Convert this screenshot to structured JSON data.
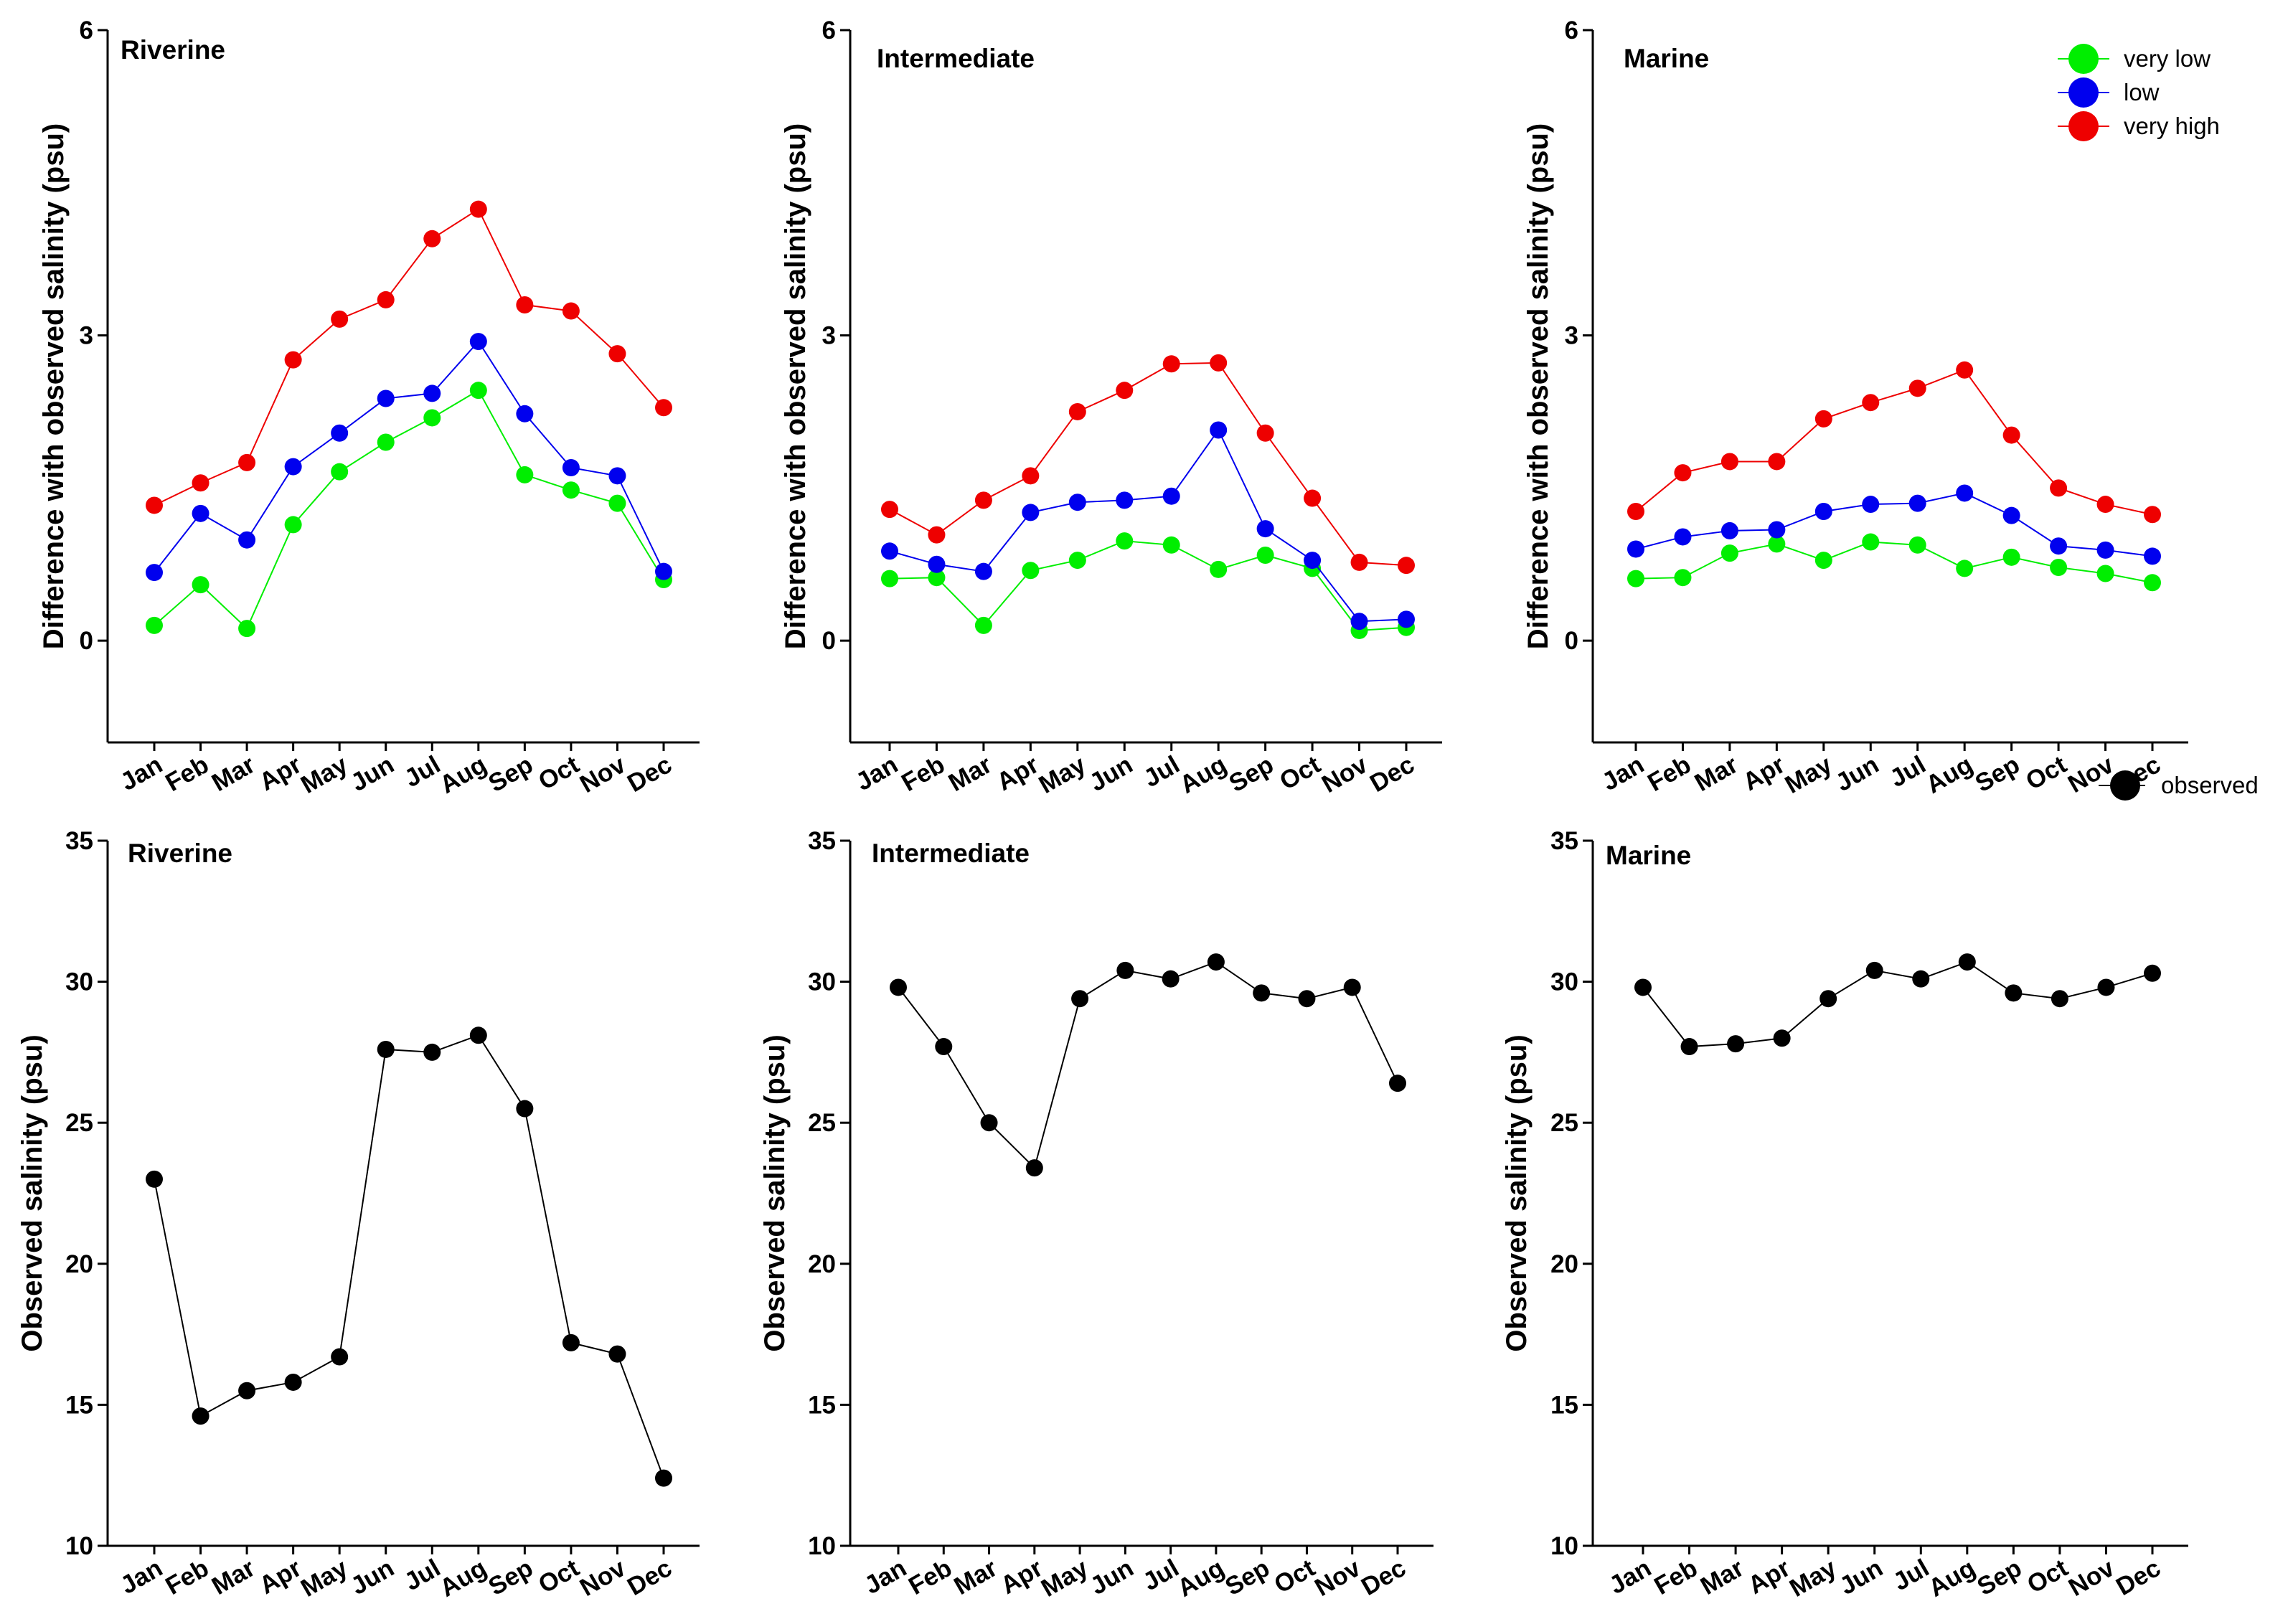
{
  "chart_data": [
    {
      "type": "line",
      "title": "Riverine",
      "ylabel": "Difference with observed salinity (psu)",
      "ylim": [
        -1,
        6
      ],
      "yticks": [
        0,
        3,
        6
      ],
      "categories": [
        "Jan",
        "Feb",
        "Mar",
        "Apr",
        "May",
        "Jun",
        "Jul",
        "Aug",
        "Sep",
        "Oct",
        "Nov",
        "Dec"
      ],
      "series": [
        {
          "name": "very low",
          "color": "#00ee00",
          "values": [
            0.15,
            0.55,
            0.12,
            1.14,
            1.66,
            1.95,
            2.19,
            2.46,
            1.63,
            1.48,
            1.35,
            0.6
          ]
        },
        {
          "name": "low",
          "color": "#0000ee",
          "values": [
            0.67,
            1.25,
            0.99,
            1.71,
            2.04,
            2.38,
            2.43,
            2.94,
            2.23,
            1.7,
            1.62,
            0.68
          ]
        },
        {
          "name": "very high",
          "color": "#ee0000",
          "values": [
            1.33,
            1.55,
            1.75,
            2.76,
            3.16,
            3.35,
            3.95,
            4.24,
            3.3,
            3.24,
            2.82,
            2.29
          ]
        }
      ]
    },
    {
      "type": "line",
      "title": "Intermediate",
      "ylabel": "Difference with observed salinity (psu)",
      "ylim": [
        -1,
        6
      ],
      "yticks": [
        0,
        3,
        6
      ],
      "categories": [
        "Jan",
        "Feb",
        "Mar",
        "Apr",
        "May",
        "Jun",
        "Jul",
        "Aug",
        "Sep",
        "Oct",
        "Nov",
        "Dec"
      ],
      "series": [
        {
          "name": "very low",
          "color": "#00ee00",
          "values": [
            0.61,
            0.62,
            0.15,
            0.69,
            0.79,
            0.98,
            0.94,
            0.7,
            0.84,
            0.71,
            0.1,
            0.13
          ]
        },
        {
          "name": "low",
          "color": "#0000ee",
          "values": [
            0.88,
            0.75,
            0.68,
            1.26,
            1.36,
            1.38,
            1.42,
            2.07,
            1.1,
            0.79,
            0.19,
            0.21
          ]
        },
        {
          "name": "very high",
          "color": "#ee0000",
          "values": [
            1.29,
            1.04,
            1.38,
            1.62,
            2.25,
            2.46,
            2.72,
            2.73,
            2.04,
            1.4,
            0.77,
            0.74
          ]
        }
      ]
    },
    {
      "type": "line",
      "title": "Marine",
      "ylabel": "Difference with observed salinity (psu)",
      "ylim": [
        -1,
        6
      ],
      "yticks": [
        0,
        3,
        6
      ],
      "categories": [
        "Jan",
        "Feb",
        "Mar",
        "Apr",
        "May",
        "Jun",
        "Jul",
        "Aug",
        "Sep",
        "Oct",
        "Nov",
        "Dec"
      ],
      "series": [
        {
          "name": "very low",
          "color": "#00ee00",
          "values": [
            0.61,
            0.62,
            0.86,
            0.95,
            0.79,
            0.97,
            0.94,
            0.71,
            0.82,
            0.72,
            0.66,
            0.57
          ]
        },
        {
          "name": "low",
          "color": "#0000ee",
          "values": [
            0.9,
            1.02,
            1.08,
            1.09,
            1.27,
            1.34,
            1.35,
            1.45,
            1.23,
            0.93,
            0.89,
            0.83
          ]
        },
        {
          "name": "very high",
          "color": "#ee0000",
          "values": [
            1.27,
            1.65,
            1.76,
            1.76,
            2.18,
            2.34,
            2.48,
            2.66,
            2.02,
            1.5,
            1.34,
            1.24
          ]
        }
      ],
      "legend": "top-right"
    },
    {
      "type": "line",
      "title": "Riverine",
      "ylabel": "Observed salinity (psu)",
      "ylim": [
        10,
        35
      ],
      "yticks": [
        10,
        15,
        20,
        25,
        30,
        35
      ],
      "categories": [
        "Jan",
        "Feb",
        "Mar",
        "Apr",
        "May",
        "Jun",
        "Jul",
        "Aug",
        "Sep",
        "Oct",
        "Nov",
        "Dec"
      ],
      "series": [
        {
          "name": "observed",
          "color": "#000000",
          "values": [
            23.0,
            14.6,
            15.5,
            15.8,
            16.7,
            27.6,
            27.5,
            28.1,
            25.5,
            17.2,
            16.8,
            12.4
          ]
        }
      ]
    },
    {
      "type": "line",
      "title": "Intermediate",
      "ylabel": "Observed salinity (psu)",
      "ylim": [
        10,
        35
      ],
      "yticks": [
        10,
        15,
        20,
        25,
        30,
        35
      ],
      "categories": [
        "Jan",
        "Feb",
        "Mar",
        "Apr",
        "May",
        "Jun",
        "Jul",
        "Aug",
        "Sep",
        "Oct",
        "Nov",
        "Dec"
      ],
      "series": [
        {
          "name": "observed",
          "color": "#000000",
          "values": [
            29.8,
            27.7,
            25.0,
            23.4,
            29.4,
            30.4,
            30.1,
            30.7,
            29.6,
            29.4,
            29.8,
            26.4
          ]
        }
      ]
    },
    {
      "type": "line",
      "title": "Marine",
      "ylabel": "Observed salinity (psu)",
      "ylim": [
        10,
        35
      ],
      "yticks": [
        10,
        15,
        20,
        25,
        30,
        35
      ],
      "categories": [
        "Jan",
        "Feb",
        "Mar",
        "Apr",
        "May",
        "Jun",
        "Jul",
        "Aug",
        "Sep",
        "Oct",
        "Nov",
        "Dec"
      ],
      "series": [
        {
          "name": "observed",
          "color": "#000000",
          "values": [
            29.8,
            27.7,
            27.8,
            28.0,
            29.4,
            30.4,
            30.1,
            30.7,
            29.6,
            29.4,
            29.8,
            30.3
          ]
        }
      ],
      "legend": "top-right"
    }
  ]
}
